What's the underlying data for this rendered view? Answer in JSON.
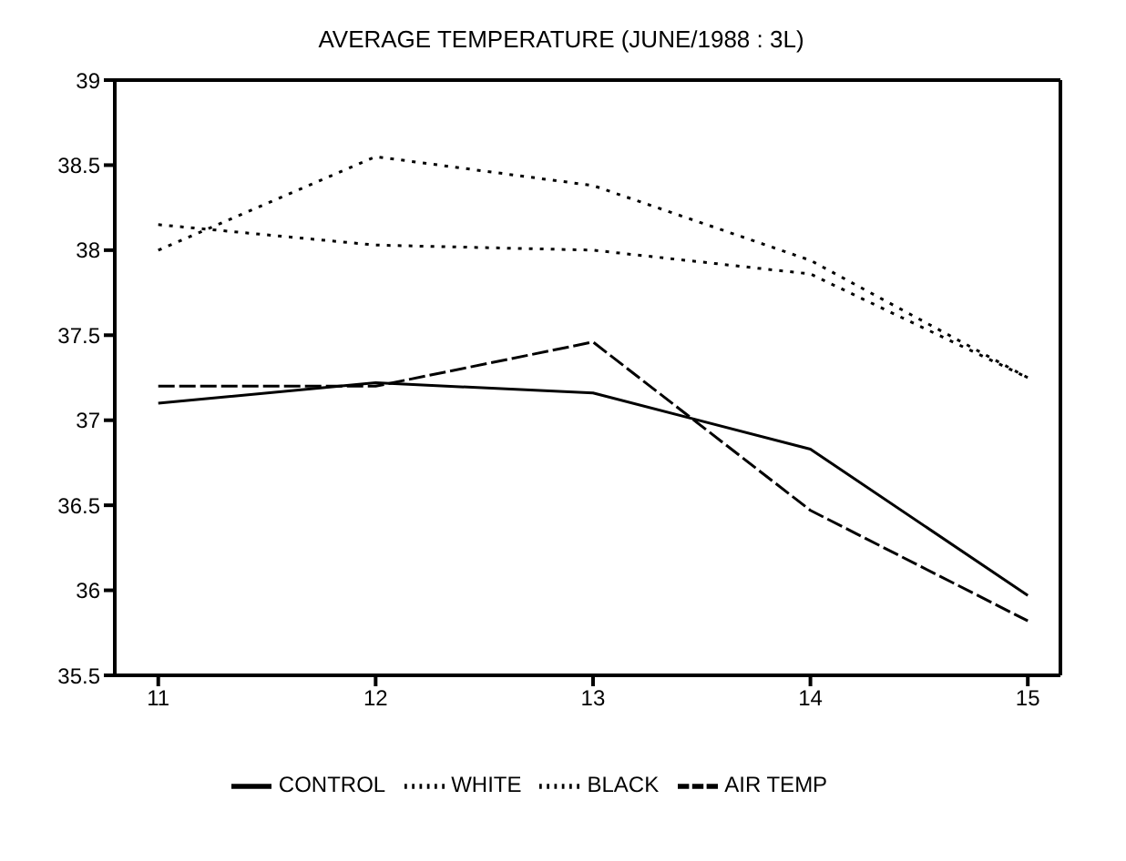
{
  "chart_data": {
    "type": "line",
    "title": "AVERAGE TEMPERATURE (JUNE/1988 : 3L)",
    "x": [
      11,
      12,
      13,
      14,
      15
    ],
    "series": [
      {
        "name": "CONTROL",
        "color": "#000000",
        "line_style": "solid",
        "values": [
          37.1,
          37.22,
          37.16,
          36.83,
          35.97
        ]
      },
      {
        "name": "WHITE",
        "color": "#000000",
        "line_style": "dotted",
        "values": [
          38.15,
          38.03,
          38.0,
          37.86,
          37.25
        ]
      },
      {
        "name": "BLACK",
        "color": "#000000",
        "line_style": "dotted",
        "values": [
          38.0,
          38.55,
          38.38,
          37.94,
          37.25
        ]
      },
      {
        "name": "AIR TEMP",
        "color": "#000000",
        "line_style": "dashed",
        "values": [
          37.2,
          37.2,
          37.46,
          36.47,
          35.82
        ]
      }
    ],
    "xlim": [
      10.8,
      15.15
    ],
    "xticks": [
      11,
      12,
      13,
      14,
      15
    ],
    "ylim": [
      35.5,
      39
    ],
    "yticks": [
      35.5,
      36,
      36.5,
      37,
      37.5,
      38,
      38.5,
      39
    ],
    "grid": false,
    "legend": "bottom",
    "marker": "none"
  }
}
